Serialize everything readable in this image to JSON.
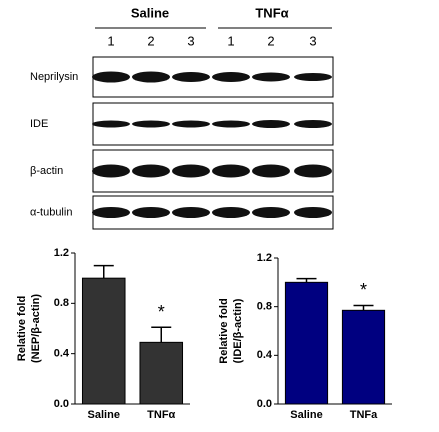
{
  "blot": {
    "groups": [
      "Saline",
      "TNFα"
    ],
    "lanes": [
      "1",
      "2",
      "3",
      "1",
      "2",
      "3"
    ],
    "rows": [
      "Neprilysin",
      "IDE",
      "β-actin",
      "α-tubulin"
    ]
  },
  "chart_data": [
    {
      "type": "bar",
      "categories": [
        "Saline",
        "TNFα"
      ],
      "values": [
        1.0,
        0.49
      ],
      "errors": [
        0.1,
        0.12
      ],
      "color": "#333333",
      "ylabel": [
        "Relative fold",
        "(NEP/β-actin)"
      ],
      "annotation": "*",
      "ylim": [
        0,
        1.2
      ],
      "yticks": [
        {
          "value": 0,
          "label": "0.0"
        },
        0.4,
        0.8,
        1.2
      ]
    },
    {
      "type": "bar",
      "categories": [
        "Saline",
        "TNFa"
      ],
      "values": [
        1.0,
        0.77
      ],
      "errors": [
        0.03,
        0.04
      ],
      "color": "#000080",
      "ylabel": [
        "Relative fold",
        "(IDE/β-actin)"
      ],
      "annotation": "*",
      "ylim": [
        0,
        1.2
      ],
      "yticks": [
        {
          "value": 0,
          "label": "0.0"
        },
        0.4,
        0.8,
        1.2
      ]
    }
  ]
}
